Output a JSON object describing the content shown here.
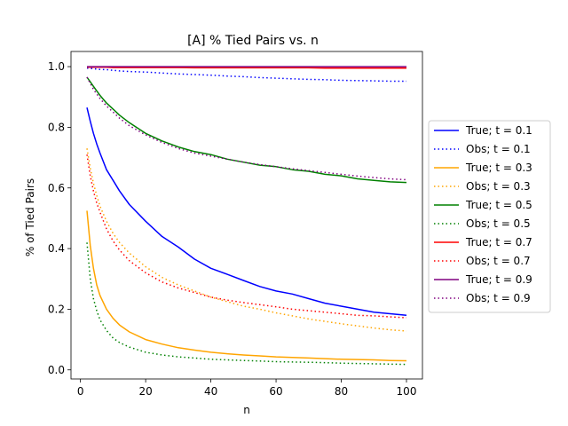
{
  "chart_data": {
    "type": "line",
    "title": "[A] % Tied Pairs vs. n",
    "xlabel": "n",
    "ylabel": "% of Tied Pairs",
    "xlim": [
      -2.9,
      104.9
    ],
    "ylim": [
      -0.03,
      1.05
    ],
    "xticks": [
      0,
      20,
      40,
      60,
      80,
      100
    ],
    "yticks": [
      0.0,
      0.2,
      0.4,
      0.6,
      0.8,
      1.0
    ],
    "xtick_labels": [
      "0",
      "20",
      "40",
      "60",
      "80",
      "100"
    ],
    "ytick_labels": [
      "0.0",
      "0.2",
      "0.4",
      "0.6",
      "0.8",
      "1.0"
    ],
    "grid": false,
    "legend_position": "outside-right",
    "x": [
      2,
      3,
      4,
      5,
      6,
      8,
      10,
      12,
      15,
      20,
      25,
      30,
      35,
      40,
      45,
      50,
      55,
      60,
      65,
      70,
      75,
      80,
      85,
      90,
      95,
      100
    ],
    "series": [
      {
        "name": "True; t = 0.1",
        "color": "#0000ff",
        "dash": "solid",
        "values": [
          0.865,
          0.82,
          0.78,
          0.745,
          0.715,
          0.66,
          0.625,
          0.59,
          0.545,
          0.49,
          0.44,
          0.405,
          0.365,
          0.335,
          0.315,
          0.295,
          0.275,
          0.26,
          0.25,
          0.235,
          0.22,
          0.21,
          0.2,
          0.19,
          0.185,
          0.18
        ]
      },
      {
        "name": "Obs; t = 0.1",
        "color": "#0000ff",
        "dash": "dotted",
        "values": [
          0.995,
          0.994,
          0.993,
          0.992,
          0.991,
          0.99,
          0.988,
          0.986,
          0.984,
          0.982,
          0.979,
          0.976,
          0.974,
          0.972,
          0.969,
          0.967,
          0.964,
          0.962,
          0.96,
          0.958,
          0.957,
          0.955,
          0.954,
          0.953,
          0.952,
          0.952
        ]
      },
      {
        "name": "True; t = 0.3",
        "color": "#ffa500",
        "dash": "solid",
        "values": [
          0.525,
          0.41,
          0.335,
          0.28,
          0.245,
          0.2,
          0.17,
          0.148,
          0.125,
          0.1,
          0.085,
          0.073,
          0.065,
          0.058,
          0.053,
          0.049,
          0.046,
          0.043,
          0.041,
          0.039,
          0.037,
          0.035,
          0.034,
          0.033,
          0.031,
          0.03
        ]
      },
      {
        "name": "Obs; t = 0.3",
        "color": "#ffa500",
        "dash": "dotted",
        "values": [
          0.73,
          0.665,
          0.615,
          0.575,
          0.54,
          0.49,
          0.45,
          0.42,
          0.385,
          0.34,
          0.305,
          0.28,
          0.26,
          0.24,
          0.225,
          0.21,
          0.2,
          0.188,
          0.178,
          0.168,
          0.16,
          0.152,
          0.145,
          0.138,
          0.132,
          0.128
        ]
      },
      {
        "name": "True; t = 0.5",
        "color": "#008000",
        "dash": "solid",
        "values": [
          0.965,
          0.95,
          0.935,
          0.92,
          0.905,
          0.88,
          0.86,
          0.84,
          0.815,
          0.78,
          0.755,
          0.735,
          0.72,
          0.71,
          0.695,
          0.685,
          0.675,
          0.67,
          0.66,
          0.655,
          0.645,
          0.64,
          0.63,
          0.625,
          0.62,
          0.618
        ]
      },
      {
        "name": "Obs; t = 0.5",
        "color": "#008000",
        "dash": "dotted",
        "values": [
          0.42,
          0.3,
          0.235,
          0.195,
          0.165,
          0.13,
          0.105,
          0.09,
          0.075,
          0.058,
          0.049,
          0.043,
          0.039,
          0.035,
          0.033,
          0.031,
          0.029,
          0.027,
          0.026,
          0.025,
          0.024,
          0.022,
          0.021,
          0.02,
          0.019,
          0.018
        ]
      },
      {
        "name": "True; t = 0.7",
        "color": "#ff0000",
        "dash": "solid",
        "values": [
          0.998,
          0.998,
          0.998,
          0.998,
          0.998,
          0.998,
          0.997,
          0.997,
          0.997,
          0.997,
          0.997,
          0.997,
          0.996,
          0.996,
          0.996,
          0.996,
          0.996,
          0.996,
          0.996,
          0.996,
          0.995,
          0.995,
          0.995,
          0.995,
          0.995,
          0.995
        ]
      },
      {
        "name": "Obs; t = 0.7",
        "color": "#ff0000",
        "dash": "dotted",
        "values": [
          0.71,
          0.64,
          0.59,
          0.55,
          0.52,
          0.465,
          0.425,
          0.395,
          0.36,
          0.32,
          0.29,
          0.27,
          0.255,
          0.24,
          0.23,
          0.222,
          0.215,
          0.208,
          0.2,
          0.195,
          0.19,
          0.185,
          0.18,
          0.178,
          0.175,
          0.172
        ]
      },
      {
        "name": "True; t = 0.9",
        "color": "#800080",
        "dash": "solid",
        "values": [
          1.0,
          1.0,
          1.0,
          1.0,
          1.0,
          1.0,
          1.0,
          1.0,
          1.0,
          1.0,
          1.0,
          1.0,
          1.0,
          1.0,
          1.0,
          1.0,
          1.0,
          1.0,
          1.0,
          1.0,
          1.0,
          1.0,
          1.0,
          1.0,
          1.0,
          1.0
        ]
      },
      {
        "name": "Obs; t = 0.9",
        "color": "#800080",
        "dash": "dotted",
        "values": [
          0.965,
          0.945,
          0.925,
          0.91,
          0.895,
          0.87,
          0.85,
          0.83,
          0.805,
          0.775,
          0.75,
          0.73,
          0.715,
          0.705,
          0.695,
          0.685,
          0.677,
          0.67,
          0.663,
          0.657,
          0.651,
          0.645,
          0.639,
          0.634,
          0.63,
          0.627
        ]
      }
    ]
  }
}
